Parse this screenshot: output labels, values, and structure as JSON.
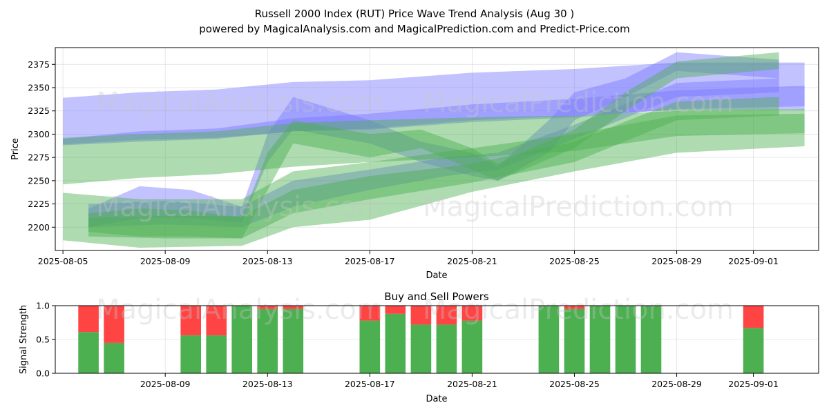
{
  "title": "Russell 2000 Index (RUT) Price Wave Trend Analysis (Aug 30 )",
  "subtitle": "powered by MagicalAnalysis.com and MagicalPrediction.com and Predict-Price.com",
  "watermarks": [
    "MagicalAnalysis.com",
    "MagicalPrediction.com"
  ],
  "colors": {
    "buy": "#4caf50",
    "sell": "#ff4444",
    "blue_band": "#7777ff",
    "green_band": "#4caf50"
  },
  "chart_data": [
    {
      "type": "area",
      "xlabel": "Date",
      "ylabel": "Price",
      "x_ticks": [
        "2025-08-05",
        "2025-08-09",
        "2025-08-13",
        "2025-08-17",
        "2025-08-21",
        "2025-08-25",
        "2025-08-29",
        "2025-09-01"
      ],
      "y_ticks": [
        2200,
        2225,
        2250,
        2275,
        2300,
        2325,
        2350,
        2375
      ],
      "xlim": [
        "2025-08-05",
        "2025-09-03"
      ],
      "ylim": [
        2175,
        2393
      ],
      "grid": true,
      "bands": [
        {
          "color": "blue",
          "x": [
            "2025-08-05",
            "2025-08-08",
            "2025-08-11",
            "2025-08-14",
            "2025-08-17",
            "2025-08-21",
            "2025-08-25",
            "2025-08-29",
            "2025-09-03"
          ],
          "upper": [
            2339,
            2345,
            2348,
            2356,
            2358,
            2366,
            2370,
            2377,
            2377
          ],
          "lower": [
            2289,
            2294,
            2296,
            2303,
            2305,
            2313,
            2318,
            2327,
            2330
          ]
        },
        {
          "color": "blue",
          "x": [
            "2025-08-05",
            "2025-08-08",
            "2025-08-11",
            "2025-08-14",
            "2025-08-17",
            "2025-08-21",
            "2025-08-25",
            "2025-08-29",
            "2025-09-03"
          ],
          "upper": [
            2295,
            2303,
            2306,
            2317,
            2322,
            2332,
            2338,
            2347,
            2352
          ],
          "lower": [
            2288,
            2292,
            2295,
            2303,
            2306,
            2315,
            2320,
            2326,
            2326
          ]
        },
        {
          "color": "blue",
          "x": [
            "2025-08-06",
            "2025-08-08",
            "2025-08-10",
            "2025-08-12",
            "2025-08-13",
            "2025-08-14",
            "2025-08-17",
            "2025-08-19",
            "2025-08-21",
            "2025-08-22",
            "2025-08-24",
            "2025-08-25",
            "2025-08-27",
            "2025-08-29",
            "2025-09-02"
          ],
          "upper": [
            2220,
            2244,
            2240,
            2222,
            2300,
            2340,
            2315,
            2292,
            2280,
            2265,
            2315,
            2345,
            2360,
            2388,
            2380
          ],
          "lower": [
            2200,
            2210,
            2210,
            2205,
            2270,
            2305,
            2290,
            2270,
            2255,
            2250,
            2280,
            2315,
            2340,
            2368,
            2360
          ]
        },
        {
          "color": "blue",
          "x": [
            "2025-08-06",
            "2025-08-09",
            "2025-08-12",
            "2025-08-14",
            "2025-08-17",
            "2025-08-20",
            "2025-08-22",
            "2025-08-25",
            "2025-08-29",
            "2025-09-02"
          ],
          "upper": [
            2225,
            2228,
            2222,
            2250,
            2262,
            2275,
            2280,
            2310,
            2355,
            2360
          ],
          "lower": [
            2200,
            2203,
            2200,
            2222,
            2240,
            2255,
            2262,
            2295,
            2340,
            2345
          ]
        },
        {
          "color": "green",
          "x": [
            "2025-08-05",
            "2025-08-08",
            "2025-08-11",
            "2025-08-14",
            "2025-08-17",
            "2025-08-21",
            "2025-08-25",
            "2025-08-29",
            "2025-09-03"
          ],
          "upper": [
            2296,
            2300,
            2303,
            2312,
            2315,
            2318,
            2320,
            2325,
            2327
          ],
          "lower": [
            2246,
            2253,
            2257,
            2265,
            2270,
            2275,
            2282,
            2298,
            2301
          ]
        },
        {
          "color": "green",
          "x": [
            "2025-08-05",
            "2025-08-08",
            "2025-08-12",
            "2025-08-14",
            "2025-08-17",
            "2025-08-21",
            "2025-08-25",
            "2025-08-29",
            "2025-09-03"
          ],
          "upper": [
            2237,
            2230,
            2230,
            2260,
            2270,
            2285,
            2300,
            2320,
            2322
          ],
          "lower": [
            2186,
            2178,
            2180,
            2200,
            2208,
            2238,
            2260,
            2280,
            2287
          ]
        },
        {
          "color": "green",
          "x": [
            "2025-08-06",
            "2025-08-08",
            "2025-08-10",
            "2025-08-12",
            "2025-08-13",
            "2025-08-14",
            "2025-08-17",
            "2025-08-19",
            "2025-08-21",
            "2025-08-22",
            "2025-08-25",
            "2025-08-27",
            "2025-08-29",
            "2025-09-02"
          ],
          "upper": [
            2215,
            2220,
            2218,
            2210,
            2280,
            2315,
            2300,
            2305,
            2285,
            2268,
            2305,
            2345,
            2378,
            2388
          ],
          "lower": [
            2195,
            2190,
            2190,
            2188,
            2240,
            2290,
            2275,
            2285,
            2262,
            2250,
            2285,
            2325,
            2360,
            2370
          ]
        },
        {
          "color": "green",
          "x": [
            "2025-08-06",
            "2025-08-09",
            "2025-08-12",
            "2025-08-14",
            "2025-08-17",
            "2025-08-21",
            "2025-08-25",
            "2025-08-29",
            "2025-09-02"
          ],
          "upper": [
            2210,
            2212,
            2212,
            2240,
            2255,
            2268,
            2292,
            2335,
            2340
          ],
          "lower": [
            2190,
            2188,
            2188,
            2215,
            2230,
            2248,
            2270,
            2315,
            2320
          ]
        }
      ]
    },
    {
      "type": "bar",
      "title": "Buy and Sell Powers",
      "xlabel": "Date",
      "ylabel": "Signal Strength",
      "x_ticks": [
        "2025-08-09",
        "2025-08-13",
        "2025-08-17",
        "2025-08-21",
        "2025-08-25",
        "2025-08-29",
        "2025-09-01"
      ],
      "y_ticks": [
        0.0,
        0.5,
        1.0
      ],
      "ylim": [
        0,
        1
      ],
      "xlim": [
        "2025-08-05",
        "2025-09-03"
      ],
      "series": [
        {
          "name": "buy",
          "x": [
            "2025-08-06",
            "2025-08-07",
            "2025-08-10",
            "2025-08-11",
            "2025-08-12",
            "2025-08-13",
            "2025-08-14",
            "2025-08-17",
            "2025-08-18",
            "2025-08-19",
            "2025-08-20",
            "2025-08-21",
            "2025-08-24",
            "2025-08-25",
            "2025-08-26",
            "2025-08-27",
            "2025-08-28",
            "2025-09-01"
          ],
          "values": [
            0.61,
            0.45,
            0.56,
            0.56,
            1.0,
            0.95,
            0.95,
            0.78,
            0.88,
            0.72,
            0.72,
            0.78,
            1.0,
            0.95,
            1.0,
            1.0,
            1.0,
            0.67
          ]
        },
        {
          "name": "sell",
          "x": [
            "2025-08-06",
            "2025-08-07",
            "2025-08-10",
            "2025-08-11",
            "2025-08-12",
            "2025-08-13",
            "2025-08-14",
            "2025-08-17",
            "2025-08-18",
            "2025-08-19",
            "2025-08-20",
            "2025-08-21",
            "2025-08-24",
            "2025-08-25",
            "2025-08-26",
            "2025-08-27",
            "2025-08-28",
            "2025-09-01"
          ],
          "values": [
            0.39,
            0.55,
            0.44,
            0.44,
            0.0,
            0.05,
            0.05,
            0.22,
            0.12,
            0.28,
            0.28,
            0.22,
            0.0,
            0.05,
            0.0,
            0.0,
            0.0,
            0.33
          ]
        }
      ]
    }
  ]
}
